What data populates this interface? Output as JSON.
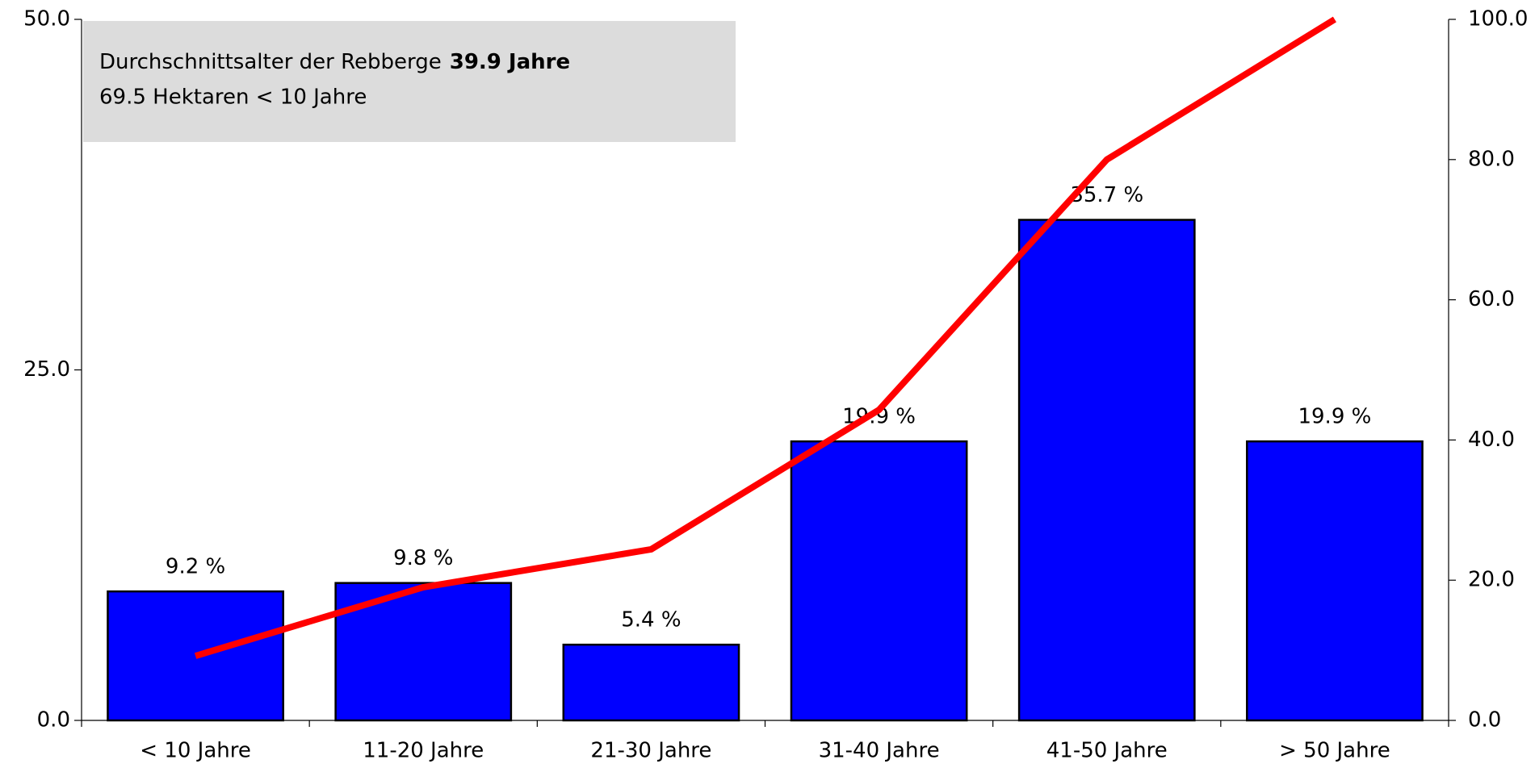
{
  "chart_data": {
    "type": "bar",
    "categories": [
      "< 10 Jahre",
      "11-20 Jahre",
      "21-30 Jahre",
      "31-40 Jahre",
      "41-50 Jahre",
      "> 50 Jahre"
    ],
    "series": [
      {
        "color": "#0000ff",
        "values": [
          9.2,
          9.8,
          5.4,
          19.9,
          35.7,
          19.9
        ],
        "value_labels": [
          "9.2 %",
          "9.8 %",
          "5.4 %",
          "19.9 %",
          "35.7 %",
          "19.9 %"
        ]
      },
      {
        "type": "line",
        "axis": "y2",
        "color": "#ff0000",
        "values": [
          9.2,
          19.0,
          24.4,
          44.3,
          80.0,
          100.0
        ]
      }
    ],
    "ylim": [
      0,
      50
    ],
    "yticks": [
      {
        "value": 0,
        "label": "0.0"
      },
      {
        "value": 25,
        "label": "25.0"
      },
      {
        "value": 50,
        "label": "50.0"
      }
    ],
    "y2lim": [
      0,
      100
    ],
    "y2ticks": [
      {
        "value": 0,
        "label": "0.0"
      },
      {
        "value": 20,
        "label": "20.0"
      },
      {
        "value": 40,
        "label": "40.0"
      },
      {
        "value": 60,
        "label": "60.0"
      },
      {
        "value": 80,
        "label": "80.0"
      },
      {
        "value": 100,
        "label": "100.0"
      }
    ],
    "annotation": {
      "line1": "Durchschnittsalter der Rebberge",
      "line1_bold": "39.9 Jahre",
      "line2": "69.5 Hektaren < 10 Jahre"
    }
  }
}
